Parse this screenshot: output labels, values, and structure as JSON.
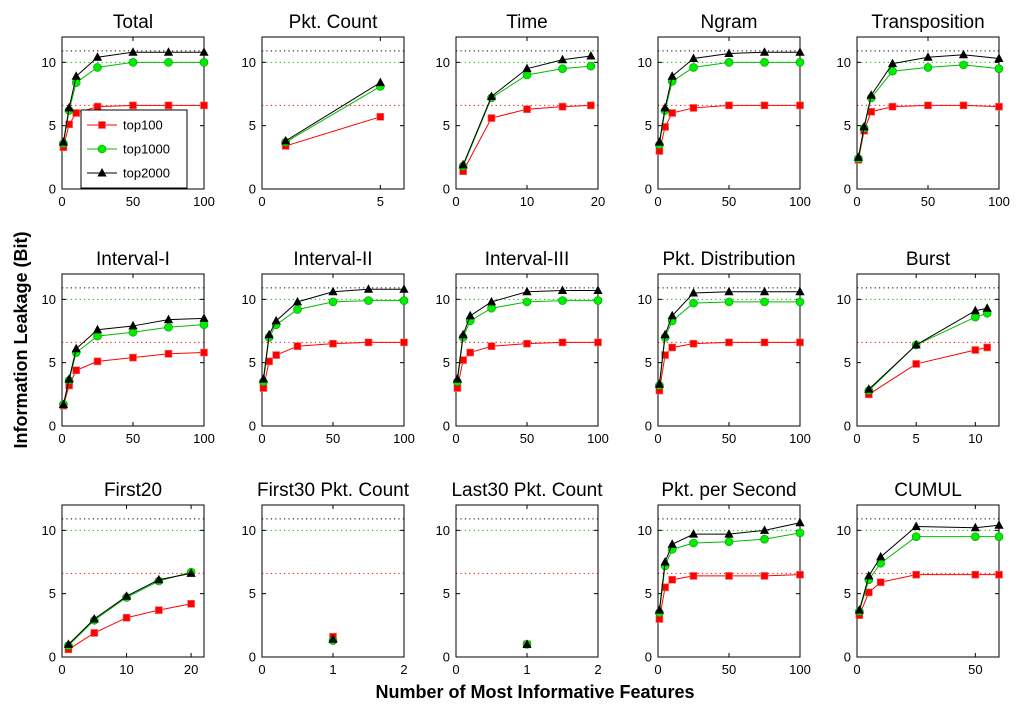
{
  "figure": {
    "ylabel": "Information Leakage (Bit)",
    "xlabel": "Number of Most Informative Features"
  },
  "legend": {
    "entries": [
      {
        "name": "top100",
        "color": "#ff0000",
        "marker": "square"
      },
      {
        "name": "top1000",
        "color": "#00ee00",
        "marker": "circle"
      },
      {
        "name": "top2000",
        "color": "#000000",
        "marker": "triangle"
      }
    ],
    "location": "inside Total panel, lower left"
  },
  "chart_data": [
    {
      "type": "line",
      "title": "Total",
      "xlim": [
        0,
        100
      ],
      "ylim": [
        0,
        12
      ],
      "xticks": [
        0,
        50,
        100
      ],
      "yticks": [
        0,
        5,
        10
      ],
      "reference_lines": [
        6.6,
        10.0,
        10.9
      ],
      "series": [
        {
          "name": "top100",
          "x": [
            1,
            5,
            10,
            25,
            50,
            75,
            100
          ],
          "y": [
            3.3,
            5.1,
            6.0,
            6.5,
            6.6,
            6.6,
            6.6
          ]
        },
        {
          "name": "top1000",
          "x": [
            1,
            5,
            10,
            25,
            50,
            75,
            100
          ],
          "y": [
            3.6,
            6.2,
            8.4,
            9.6,
            10.0,
            10.0,
            10.0
          ]
        },
        {
          "name": "top2000",
          "x": [
            1,
            5,
            10,
            25,
            50,
            75,
            100
          ],
          "y": [
            3.7,
            6.4,
            8.9,
            10.4,
            10.8,
            10.8,
            10.8
          ]
        }
      ]
    },
    {
      "type": "line",
      "title": "Pkt. Count",
      "xlim": [
        0,
        6
      ],
      "ylim": [
        0,
        12
      ],
      "xticks": [
        0,
        5
      ],
      "yticks": [
        0,
        5,
        10
      ],
      "reference_lines": [
        6.6,
        10.0,
        10.9
      ],
      "series": [
        {
          "name": "top100",
          "x": [
            1,
            5
          ],
          "y": [
            3.4,
            5.7
          ]
        },
        {
          "name": "top1000",
          "x": [
            1,
            5
          ],
          "y": [
            3.7,
            8.1
          ]
        },
        {
          "name": "top2000",
          "x": [
            1,
            5
          ],
          "y": [
            3.8,
            8.4
          ]
        }
      ]
    },
    {
      "type": "line",
      "title": "Time",
      "xlim": [
        0,
        20
      ],
      "ylim": [
        0,
        12
      ],
      "xticks": [
        0,
        10,
        20
      ],
      "yticks": [
        0,
        5,
        10
      ],
      "reference_lines": [
        6.6,
        10.0,
        10.9
      ],
      "series": [
        {
          "name": "top100",
          "x": [
            1,
            5,
            10,
            15,
            19
          ],
          "y": [
            1.4,
            5.6,
            6.3,
            6.5,
            6.6
          ]
        },
        {
          "name": "top1000",
          "x": [
            1,
            5,
            10,
            15,
            19
          ],
          "y": [
            1.8,
            7.2,
            9.0,
            9.5,
            9.7
          ]
        },
        {
          "name": "top2000",
          "x": [
            1,
            5,
            10,
            15,
            19
          ],
          "y": [
            1.9,
            7.3,
            9.5,
            10.2,
            10.5
          ]
        }
      ]
    },
    {
      "type": "line",
      "title": "Ngram",
      "xlim": [
        0,
        100
      ],
      "ylim": [
        0,
        12
      ],
      "xticks": [
        0,
        50,
        100
      ],
      "yticks": [
        0,
        5,
        10
      ],
      "reference_lines": [
        6.6,
        10.0,
        10.9
      ],
      "series": [
        {
          "name": "top100",
          "x": [
            1,
            5,
            10,
            25,
            50,
            75,
            100
          ],
          "y": [
            3.0,
            4.9,
            6.0,
            6.4,
            6.6,
            6.6,
            6.6
          ]
        },
        {
          "name": "top1000",
          "x": [
            1,
            5,
            10,
            25,
            50,
            75,
            100
          ],
          "y": [
            3.5,
            6.2,
            8.5,
            9.6,
            10.0,
            10.0,
            10.0
          ]
        },
        {
          "name": "top2000",
          "x": [
            1,
            5,
            10,
            25,
            50,
            75,
            100
          ],
          "y": [
            3.7,
            6.4,
            8.9,
            10.3,
            10.7,
            10.8,
            10.8
          ]
        }
      ]
    },
    {
      "type": "line",
      "title": "Transposition",
      "xlim": [
        0,
        100
      ],
      "ylim": [
        0,
        12
      ],
      "xticks": [
        0,
        50,
        100
      ],
      "yticks": [
        0,
        5,
        10
      ],
      "reference_lines": [
        6.6,
        10.0,
        10.9
      ],
      "series": [
        {
          "name": "top100",
          "x": [
            1,
            5,
            10,
            25,
            50,
            75,
            100
          ],
          "y": [
            2.3,
            4.6,
            6.1,
            6.5,
            6.6,
            6.6,
            6.5
          ]
        },
        {
          "name": "top1000",
          "x": [
            1,
            5,
            10,
            25,
            50,
            75,
            100
          ],
          "y": [
            2.4,
            4.8,
            7.2,
            9.3,
            9.6,
            9.8,
            9.5
          ]
        },
        {
          "name": "top2000",
          "x": [
            1,
            5,
            10,
            25,
            50,
            75,
            100
          ],
          "y": [
            2.5,
            4.9,
            7.4,
            9.9,
            10.4,
            10.6,
            10.3
          ]
        }
      ]
    },
    {
      "type": "line",
      "title": "Interval-I",
      "xlim": [
        0,
        100
      ],
      "ylim": [
        0,
        12
      ],
      "xticks": [
        0,
        50,
        100
      ],
      "yticks": [
        0,
        5,
        10
      ],
      "reference_lines": [
        6.6,
        10.0,
        10.9
      ],
      "series": [
        {
          "name": "top100",
          "x": [
            1,
            5,
            10,
            25,
            50,
            75,
            100
          ],
          "y": [
            1.6,
            3.2,
            4.4,
            5.1,
            5.4,
            5.7,
            5.8
          ]
        },
        {
          "name": "top1000",
          "x": [
            1,
            5,
            10,
            25,
            50,
            75,
            100
          ],
          "y": [
            1.7,
            3.6,
            5.8,
            7.1,
            7.4,
            7.8,
            8.0
          ]
        },
        {
          "name": "top2000",
          "x": [
            1,
            5,
            10,
            25,
            50,
            75,
            100
          ],
          "y": [
            1.7,
            3.7,
            6.1,
            7.6,
            7.9,
            8.4,
            8.5
          ]
        }
      ]
    },
    {
      "type": "line",
      "title": "Interval-II",
      "xlim": [
        0,
        100
      ],
      "ylim": [
        0,
        12
      ],
      "xticks": [
        0,
        50,
        100
      ],
      "yticks": [
        0,
        5,
        10
      ],
      "reference_lines": [
        6.6,
        10.0,
        10.9
      ],
      "series": [
        {
          "name": "top100",
          "x": [
            1,
            5,
            10,
            25,
            50,
            75,
            100
          ],
          "y": [
            3.0,
            5.1,
            5.6,
            6.3,
            6.5,
            6.6,
            6.6
          ]
        },
        {
          "name": "top1000",
          "x": [
            1,
            5,
            10,
            25,
            50,
            75,
            100
          ],
          "y": [
            3.5,
            7.0,
            8.0,
            9.2,
            9.8,
            9.9,
            9.9
          ]
        },
        {
          "name": "top2000",
          "x": [
            1,
            5,
            10,
            25,
            50,
            75,
            100
          ],
          "y": [
            3.7,
            7.2,
            8.3,
            9.8,
            10.6,
            10.8,
            10.8
          ]
        }
      ]
    },
    {
      "type": "line",
      "title": "Interval-III",
      "xlim": [
        0,
        100
      ],
      "ylim": [
        0,
        12
      ],
      "xticks": [
        0,
        50,
        100
      ],
      "yticks": [
        0,
        5,
        10
      ],
      "reference_lines": [
        6.6,
        10.0,
        10.9
      ],
      "series": [
        {
          "name": "top100",
          "x": [
            1,
            5,
            10,
            25,
            50,
            75,
            100
          ],
          "y": [
            3.0,
            5.2,
            5.8,
            6.3,
            6.5,
            6.6,
            6.6
          ]
        },
        {
          "name": "top1000",
          "x": [
            1,
            5,
            10,
            25,
            50,
            75,
            100
          ],
          "y": [
            3.5,
            7.0,
            8.3,
            9.3,
            9.8,
            9.9,
            9.9
          ]
        },
        {
          "name": "top2000",
          "x": [
            1,
            5,
            10,
            25,
            50,
            75,
            100
          ],
          "y": [
            3.7,
            7.2,
            8.7,
            9.8,
            10.6,
            10.7,
            10.7
          ]
        }
      ]
    },
    {
      "type": "line",
      "title": "Pkt. Distribution",
      "xlim": [
        0,
        100
      ],
      "ylim": [
        0,
        12
      ],
      "xticks": [
        0,
        50,
        100
      ],
      "yticks": [
        0,
        5,
        10
      ],
      "reference_lines": [
        6.6,
        10.0,
        10.9
      ],
      "series": [
        {
          "name": "top100",
          "x": [
            1,
            5,
            10,
            25,
            50,
            75,
            100
          ],
          "y": [
            2.8,
            5.6,
            6.2,
            6.5,
            6.6,
            6.6,
            6.6
          ]
        },
        {
          "name": "top1000",
          "x": [
            1,
            5,
            10,
            25,
            50,
            75,
            100
          ],
          "y": [
            3.2,
            7.0,
            8.3,
            9.7,
            9.8,
            9.8,
            9.8
          ]
        },
        {
          "name": "top2000",
          "x": [
            1,
            5,
            10,
            25,
            50,
            75,
            100
          ],
          "y": [
            3.3,
            7.2,
            8.7,
            10.5,
            10.6,
            10.6,
            10.6
          ]
        }
      ]
    },
    {
      "type": "line",
      "title": "Burst",
      "xlim": [
        0,
        12
      ],
      "ylim": [
        0,
        12
      ],
      "xticks": [
        0,
        5,
        10
      ],
      "yticks": [
        0,
        5,
        10
      ],
      "reference_lines": [
        6.6,
        10.0,
        10.9
      ],
      "series": [
        {
          "name": "top100",
          "x": [
            1,
            5,
            10,
            11
          ],
          "y": [
            2.5,
            4.9,
            6.0,
            6.2
          ]
        },
        {
          "name": "top1000",
          "x": [
            1,
            5,
            10,
            11
          ],
          "y": [
            2.8,
            6.4,
            8.6,
            8.9
          ]
        },
        {
          "name": "top2000",
          "x": [
            1,
            5,
            10,
            11
          ],
          "y": [
            2.9,
            6.4,
            9.1,
            9.3
          ]
        }
      ]
    },
    {
      "type": "line",
      "title": "First20",
      "xlim": [
        0,
        22
      ],
      "ylim": [
        0,
        12
      ],
      "xticks": [
        0,
        10,
        20
      ],
      "yticks": [
        0,
        5,
        10
      ],
      "reference_lines": [
        6.6,
        10.0,
        10.9
      ],
      "series": [
        {
          "name": "top100",
          "x": [
            1,
            5,
            10,
            15,
            20
          ],
          "y": [
            0.6,
            1.9,
            3.1,
            3.7,
            4.2
          ]
        },
        {
          "name": "top1000",
          "x": [
            1,
            5,
            10,
            15,
            20
          ],
          "y": [
            0.9,
            2.9,
            4.7,
            6.0,
            6.7
          ]
        },
        {
          "name": "top2000",
          "x": [
            1,
            5,
            10,
            15,
            20
          ],
          "y": [
            1.0,
            3.0,
            4.8,
            6.1,
            6.6
          ]
        }
      ]
    },
    {
      "type": "line",
      "title": "First30 Pkt. Count",
      "xlim": [
        0,
        2
      ],
      "ylim": [
        0,
        12
      ],
      "xticks": [
        0,
        1,
        2
      ],
      "yticks": [
        0,
        5,
        10
      ],
      "reference_lines": [
        6.6,
        10.0,
        10.9
      ],
      "series": [
        {
          "name": "top100",
          "x": [
            1
          ],
          "y": [
            1.6
          ]
        },
        {
          "name": "top1000",
          "x": [
            1
          ],
          "y": [
            1.3
          ]
        },
        {
          "name": "top2000",
          "x": [
            1
          ],
          "y": [
            1.4
          ]
        }
      ]
    },
    {
      "type": "line",
      "title": "Last30 Pkt. Count",
      "xlim": [
        0,
        2
      ],
      "ylim": [
        0,
        12
      ],
      "xticks": [
        0,
        1,
        2
      ],
      "yticks": [
        0,
        5,
        10
      ],
      "reference_lines": [
        6.6,
        10.0,
        10.9
      ],
      "series": [
        {
          "name": "top100",
          "x": [
            1
          ],
          "y": [
            1.0
          ]
        },
        {
          "name": "top1000",
          "x": [
            1
          ],
          "y": [
            1.0
          ]
        },
        {
          "name": "top2000",
          "x": [
            1
          ],
          "y": [
            1.0
          ]
        }
      ]
    },
    {
      "type": "line",
      "title": "Pkt. per Second",
      "xlim": [
        0,
        100
      ],
      "ylim": [
        0,
        12
      ],
      "xticks": [
        0,
        50,
        100
      ],
      "yticks": [
        0,
        5,
        10
      ],
      "reference_lines": [
        6.6,
        10.0,
        10.9
      ],
      "series": [
        {
          "name": "top100",
          "x": [
            1,
            5,
            10,
            25,
            50,
            75,
            100
          ],
          "y": [
            3.0,
            5.5,
            6.1,
            6.4,
            6.4,
            6.4,
            6.5
          ]
        },
        {
          "name": "top1000",
          "x": [
            1,
            5,
            10,
            25,
            50,
            75,
            100
          ],
          "y": [
            3.5,
            7.2,
            8.5,
            9.0,
            9.1,
            9.3,
            9.8
          ]
        },
        {
          "name": "top2000",
          "x": [
            1,
            5,
            10,
            25,
            50,
            75,
            100
          ],
          "y": [
            3.7,
            7.5,
            8.9,
            9.7,
            9.7,
            10.0,
            10.6
          ]
        }
      ]
    },
    {
      "type": "line",
      "title": "CUMUL",
      "xlim": [
        0,
        60
      ],
      "ylim": [
        0,
        12
      ],
      "xticks": [
        0,
        50
      ],
      "yticks": [
        0,
        5,
        10
      ],
      "reference_lines": [
        6.6,
        10.0,
        10.9
      ],
      "series": [
        {
          "name": "top100",
          "x": [
            1,
            5,
            10,
            25,
            50,
            60
          ],
          "y": [
            3.3,
            5.1,
            5.9,
            6.5,
            6.5,
            6.5
          ]
        },
        {
          "name": "top1000",
          "x": [
            1,
            5,
            10,
            25,
            50,
            60
          ],
          "y": [
            3.6,
            6.1,
            7.4,
            9.5,
            9.5,
            9.5
          ]
        },
        {
          "name": "top2000",
          "x": [
            1,
            5,
            10,
            25,
            50,
            60
          ],
          "y": [
            3.7,
            6.4,
            7.9,
            10.3,
            10.2,
            10.4
          ]
        }
      ]
    }
  ]
}
